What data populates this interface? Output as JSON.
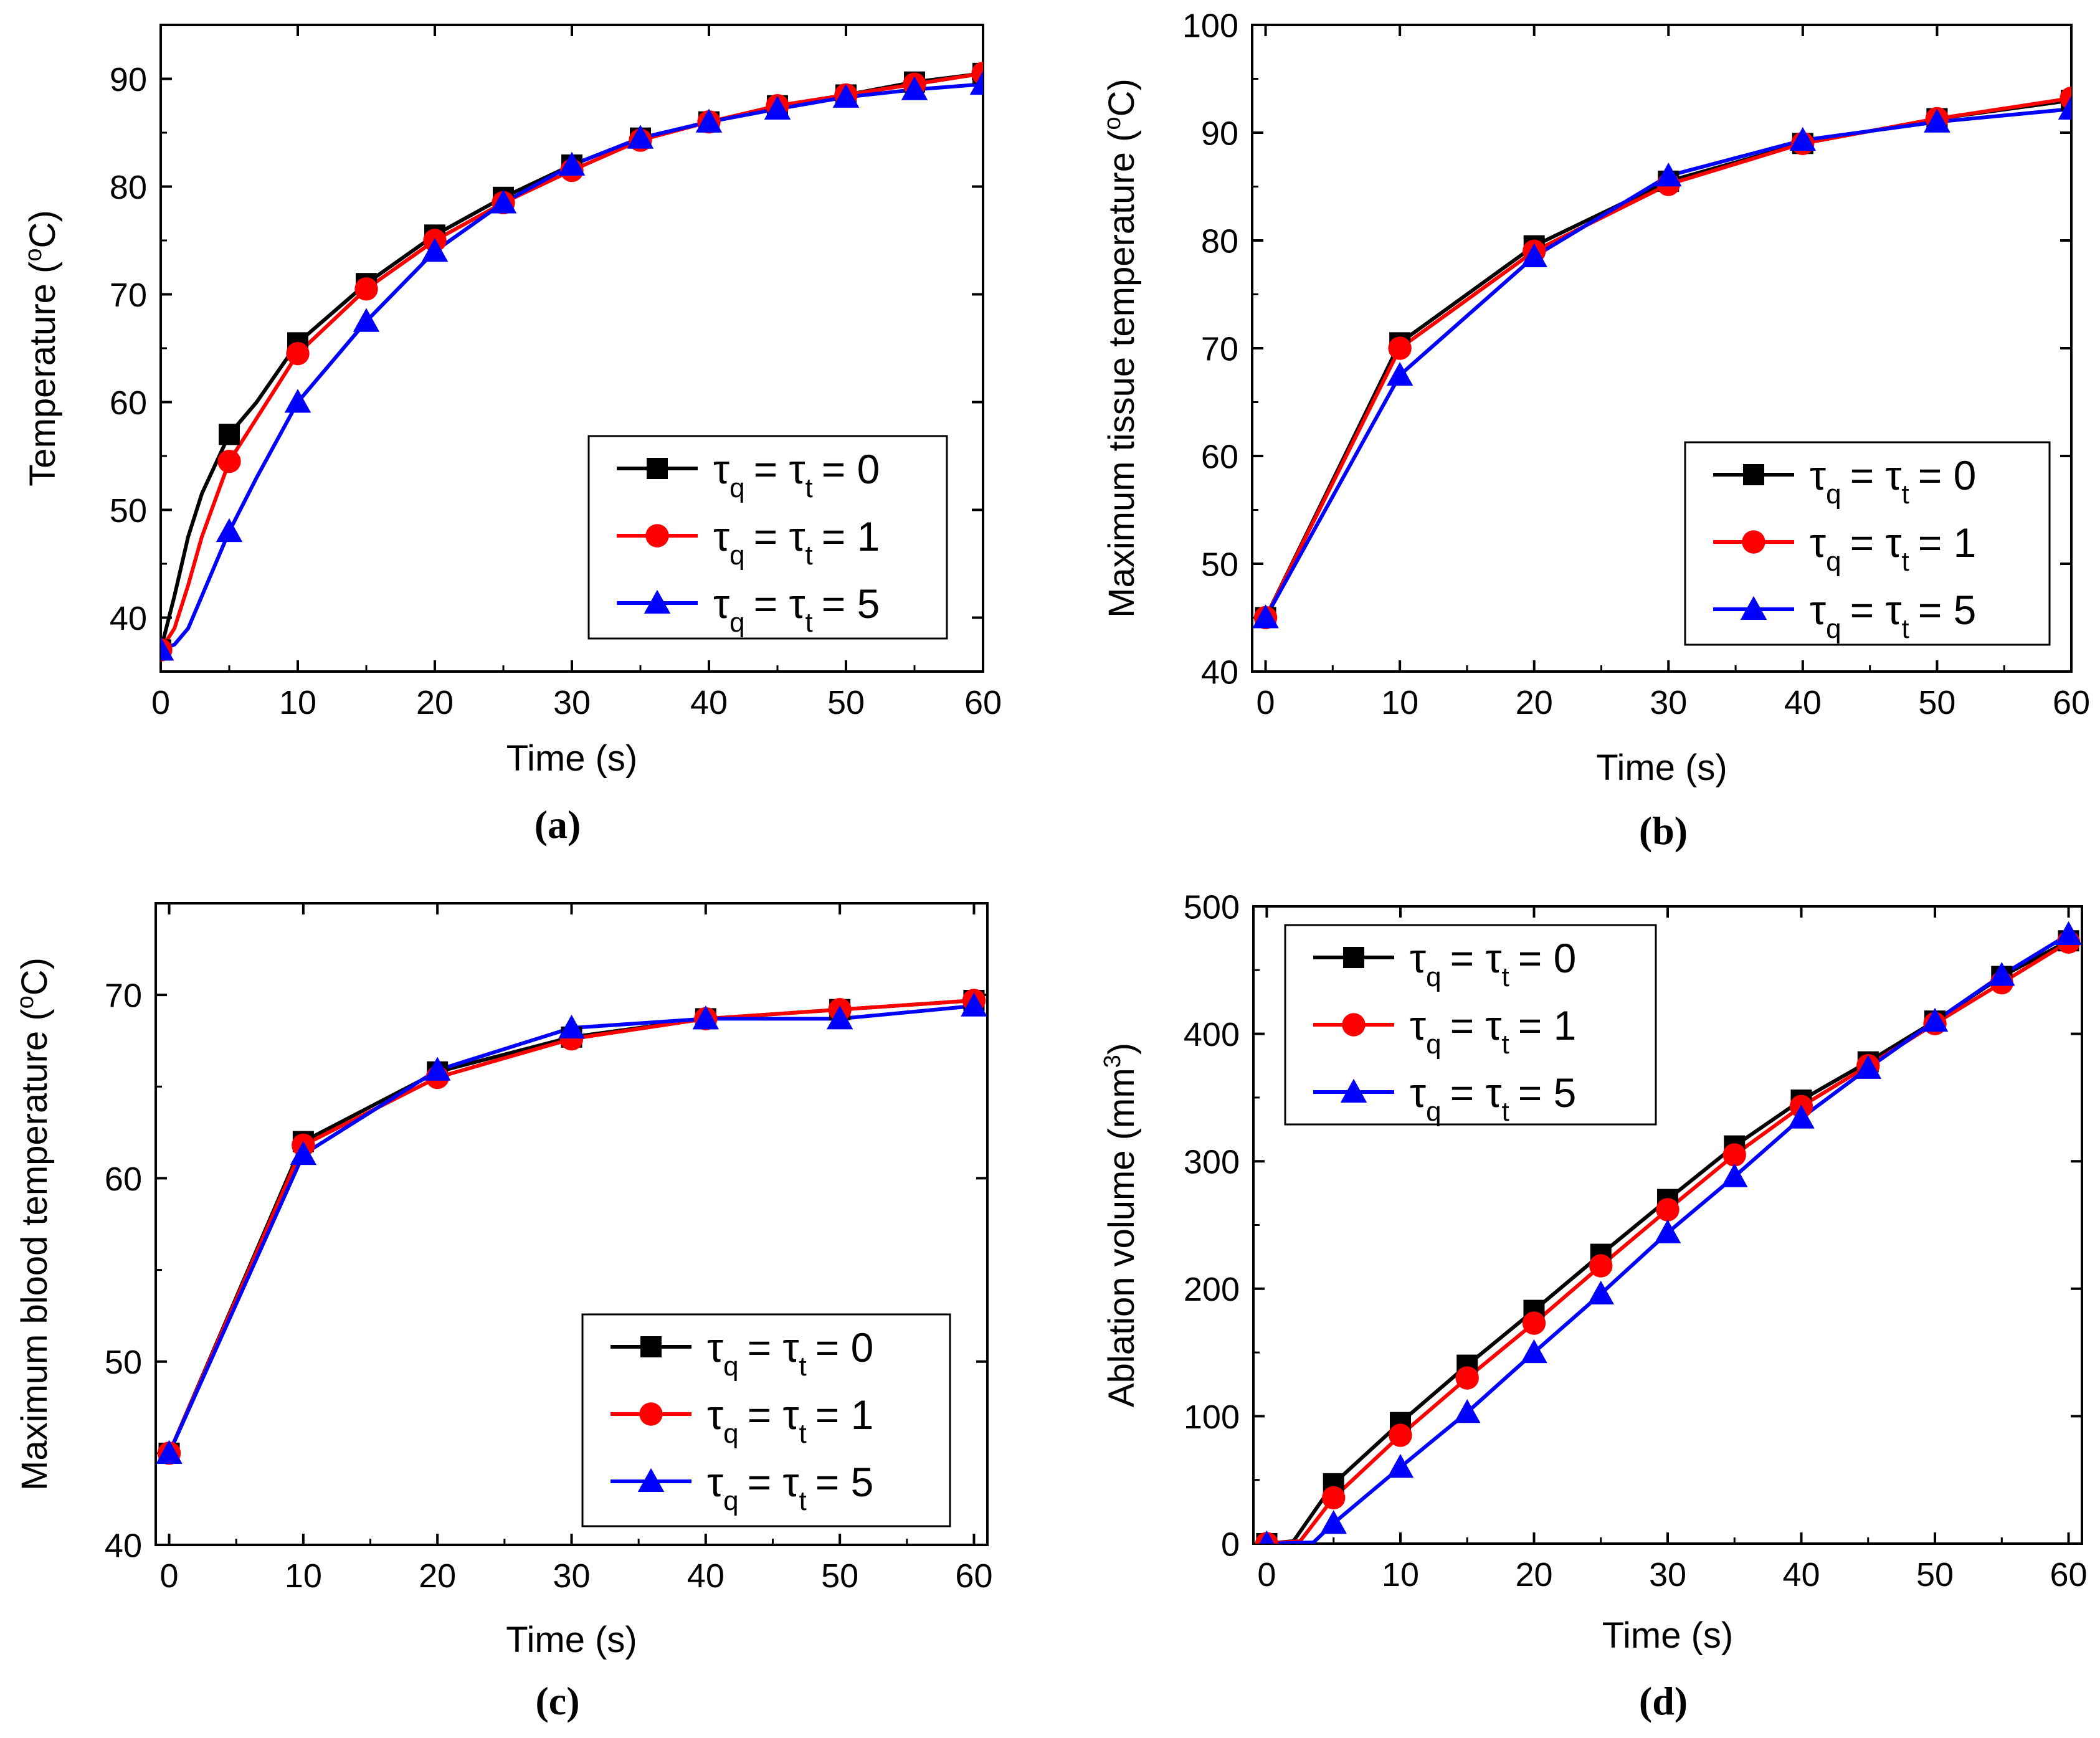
{
  "figure": {
    "panel_labels": [
      "(a)",
      "(b)",
      "(c)",
      "(d)"
    ]
  },
  "colors": {
    "series_0": "#000000",
    "series_1": "#ff0000",
    "series_2": "#0000ff"
  },
  "chart_data": [
    {
      "type": "line",
      "panel": "(a)",
      "xlabel": "Time (s)",
      "ylabel_main": "Temperature (",
      "ylabel_sup": "o",
      "ylabel_tail": "C)",
      "xlim": [
        0,
        60
      ],
      "ylim": [
        35,
        95
      ],
      "xticks": [
        0,
        10,
        20,
        30,
        40,
        50,
        60
      ],
      "yticks": [
        40,
        50,
        60,
        70,
        80,
        90
      ],
      "xtick_labels": [
        "0",
        "10",
        "20",
        "30",
        "40",
        "50",
        "60"
      ],
      "ytick_labels": [
        "40",
        "50",
        "60",
        "70",
        "80",
        "90"
      ],
      "legend_position": "lower-right",
      "series": [
        {
          "name": "τq = τt = 0",
          "tau_label": "τ",
          "sub_q": "q",
          "sub_t": "t",
          "eq": "=",
          "value_label": "= 0",
          "marker": "square",
          "x": [
            0,
            1,
            2,
            3,
            5,
            7,
            10,
            15,
            20,
            25,
            30,
            35,
            40,
            45,
            50,
            55,
            60
          ],
          "y": [
            37,
            42,
            47.5,
            51.5,
            57,
            60,
            65.5,
            71,
            75.5,
            79,
            82,
            84.5,
            86,
            87.5,
            88.5,
            89.7,
            90.5
          ],
          "mx": [
            0,
            5,
            10,
            15,
            20,
            25,
            30,
            35,
            40,
            45,
            50,
            55,
            60
          ],
          "my": [
            37,
            57,
            65.5,
            71,
            75.5,
            79,
            82,
            84.5,
            86,
            87.5,
            88.5,
            89.7,
            90.5
          ]
        },
        {
          "name": "τq = τt = 1",
          "tau_label": "τ",
          "sub_q": "q",
          "sub_t": "t",
          "eq": "=",
          "value_label": "= 1",
          "marker": "circle",
          "x": [
            0,
            1,
            2,
            3,
            5,
            7,
            10,
            15,
            20,
            25,
            30,
            35,
            40,
            45,
            50,
            55,
            60
          ],
          "y": [
            37,
            39,
            43,
            47.5,
            54.5,
            58.5,
            64.5,
            70.5,
            75,
            78.5,
            81.5,
            84.3,
            86,
            87.5,
            88.5,
            89.5,
            90.5
          ],
          "mx": [
            0,
            5,
            10,
            15,
            20,
            25,
            30,
            35,
            40,
            45,
            50,
            55,
            60
          ],
          "my": [
            37,
            54.5,
            64.5,
            70.5,
            75,
            78.5,
            81.5,
            84.3,
            86,
            87.5,
            88.5,
            89.5,
            90.5
          ]
        },
        {
          "name": "τq = τt = 5",
          "tau_label": "τ",
          "sub_q": "q",
          "sub_t": "t",
          "eq": "=",
          "value_label": "= 5",
          "marker": "triangle",
          "x": [
            0,
            1,
            2,
            3,
            5,
            7,
            10,
            15,
            20,
            25,
            30,
            35,
            40,
            45,
            50,
            55,
            60
          ],
          "y": [
            37,
            37.5,
            39,
            42,
            48,
            53,
            60,
            67.5,
            74,
            78.5,
            82,
            84.5,
            86,
            87.2,
            88.3,
            89,
            89.5
          ],
          "mx": [
            0,
            5,
            10,
            15,
            20,
            25,
            30,
            35,
            40,
            45,
            50,
            55,
            60
          ],
          "my": [
            37,
            48,
            60,
            67.5,
            74,
            78.5,
            82,
            84.5,
            86,
            87.2,
            88.3,
            89,
            89.5
          ]
        }
      ]
    },
    {
      "type": "line",
      "panel": "(b)",
      "xlabel": "Time (s)",
      "ylabel_main": "Maximum tissue temperature (",
      "ylabel_sup": "o",
      "ylabel_tail": "C)",
      "xlim": [
        -1,
        60
      ],
      "ylim": [
        40,
        100
      ],
      "xticks": [
        0,
        10,
        20,
        30,
        40,
        50,
        60
      ],
      "yticks": [
        40,
        50,
        60,
        70,
        80,
        90,
        100
      ],
      "xtick_labels": [
        "0",
        "10",
        "20",
        "30",
        "40",
        "50",
        "60"
      ],
      "ytick_labels": [
        "40",
        "50",
        "60",
        "70",
        "80",
        "90",
        "100"
      ],
      "legend_position": "lower-right",
      "series": [
        {
          "name": "τq = τt = 0",
          "tau_label": "τ",
          "sub_q": "q",
          "sub_t": "t",
          "eq": "=",
          "value_label": "= 0",
          "marker": "square",
          "x": [
            0,
            10,
            20,
            30,
            40,
            50,
            60
          ],
          "y": [
            45,
            70.5,
            79.5,
            85.5,
            89,
            91.3,
            93
          ],
          "mx": [
            0,
            10,
            20,
            30,
            40,
            50,
            60
          ],
          "my": [
            45,
            70.5,
            79.5,
            85.5,
            89,
            91.3,
            93
          ]
        },
        {
          "name": "τq = τt = 1",
          "tau_label": "τ",
          "sub_q": "q",
          "sub_t": "t",
          "eq": "=",
          "value_label": "= 1",
          "marker": "circle",
          "x": [
            0,
            10,
            20,
            30,
            40,
            50,
            60
          ],
          "y": [
            45,
            70,
            79,
            85.2,
            89,
            91.3,
            93.2
          ],
          "mx": [
            0,
            10,
            20,
            30,
            40,
            50,
            60
          ],
          "my": [
            45,
            70,
            79,
            85.2,
            89,
            91.3,
            93.2
          ]
        },
        {
          "name": "τq = τt = 5",
          "tau_label": "τ",
          "sub_q": "q",
          "sub_t": "t",
          "eq": "=",
          "value_label": "= 5",
          "marker": "triangle",
          "x": [
            0,
            10,
            20,
            30,
            40,
            50,
            60
          ],
          "y": [
            45,
            67.5,
            78.5,
            86,
            89.3,
            91,
            92.2
          ],
          "mx": [
            0,
            10,
            20,
            30,
            40,
            50,
            60
          ],
          "my": [
            45,
            67.5,
            78.5,
            86,
            89.3,
            91,
            92.2
          ]
        }
      ]
    },
    {
      "type": "line",
      "panel": "(c)",
      "xlabel": "Time (s)",
      "ylabel_main": "Maximum blood temperature (",
      "ylabel_sup": "o",
      "ylabel_tail": "C)",
      "xlim": [
        -1,
        61
      ],
      "ylim": [
        40,
        75
      ],
      "xticks": [
        0,
        10,
        20,
        30,
        40,
        50,
        60
      ],
      "yticks": [
        40,
        50,
        60,
        70
      ],
      "xtick_labels": [
        "0",
        "10",
        "20",
        "30",
        "40",
        "50",
        "60"
      ],
      "ytick_labels": [
        "40",
        "50",
        "60",
        "70"
      ],
      "legend_position": "lower-right",
      "series": [
        {
          "name": "τq = τt = 0",
          "tau_label": "τ",
          "sub_q": "q",
          "sub_t": "t",
          "eq": "=",
          "value_label": "= 0",
          "marker": "square",
          "x": [
            0,
            10,
            20,
            30,
            40,
            50,
            60
          ],
          "y": [
            45,
            62,
            65.8,
            67.7,
            68.7,
            69.2,
            69.7
          ],
          "mx": [
            0,
            10,
            20,
            30,
            40,
            50,
            60
          ],
          "my": [
            45,
            62,
            65.8,
            67.7,
            68.7,
            69.2,
            69.7
          ]
        },
        {
          "name": "τq = τt = 1",
          "tau_label": "τ",
          "sub_q": "q",
          "sub_t": "t",
          "eq": "=",
          "value_label": "= 1",
          "marker": "circle",
          "x": [
            0,
            10,
            20,
            30,
            40,
            50,
            60
          ],
          "y": [
            45,
            61.8,
            65.5,
            67.6,
            68.7,
            69.2,
            69.7
          ],
          "mx": [
            0,
            10,
            20,
            30,
            40,
            50,
            60
          ],
          "my": [
            45,
            61.8,
            65.5,
            67.6,
            68.7,
            69.2,
            69.7
          ]
        },
        {
          "name": "τq = τt = 5",
          "tau_label": "τ",
          "sub_q": "q",
          "sub_t": "t",
          "eq": "=",
          "value_label": "= 5",
          "marker": "triangle",
          "x": [
            0,
            10,
            20,
            30,
            40,
            50,
            60
          ],
          "y": [
            45,
            61.3,
            65.9,
            68.2,
            68.7,
            68.7,
            69.4
          ],
          "mx": [
            0,
            10,
            20,
            30,
            40,
            50,
            60
          ],
          "my": [
            45,
            61.3,
            65.9,
            68.2,
            68.7,
            68.7,
            69.4
          ]
        }
      ]
    },
    {
      "type": "line",
      "panel": "(d)",
      "xlabel": "Time (s)",
      "ylabel_main": "Ablation volume (mm",
      "ylabel_sup": "3",
      "ylabel_tail": ")",
      "xlim": [
        -1,
        61
      ],
      "ylim": [
        0,
        500
      ],
      "xticks": [
        0,
        10,
        20,
        30,
        40,
        50,
        60
      ],
      "yticks": [
        0,
        100,
        200,
        300,
        400,
        500
      ],
      "xtick_labels": [
        "0",
        "10",
        "20",
        "30",
        "40",
        "50",
        "60"
      ],
      "ytick_labels": [
        "0",
        "100",
        "200",
        "300",
        "400",
        "500"
      ],
      "legend_position": "upper-left",
      "series": [
        {
          "name": "τq = τt = 0",
          "tau_label": "τ",
          "sub_q": "q",
          "sub_t": "t",
          "eq": "=",
          "value_label": "= 0",
          "marker": "square",
          "x": [
            0,
            2,
            5,
            10,
            15,
            20,
            25,
            30,
            35,
            40,
            45,
            50,
            55,
            60
          ],
          "y": [
            0,
            2,
            47,
            95,
            140,
            183,
            227,
            270,
            312,
            348,
            378,
            410,
            445,
            473
          ],
          "mx": [
            0,
            5,
            10,
            15,
            20,
            25,
            30,
            35,
            40,
            45,
            50,
            55,
            60
          ],
          "my": [
            0,
            47,
            95,
            140,
            183,
            227,
            270,
            312,
            348,
            378,
            410,
            445,
            473
          ]
        },
        {
          "name": "τq = τt = 1",
          "tau_label": "τ",
          "sub_q": "q",
          "sub_t": "t",
          "eq": "=",
          "value_label": "= 1",
          "marker": "circle",
          "x": [
            0,
            2.5,
            5,
            10,
            15,
            20,
            25,
            30,
            35,
            40,
            45,
            50,
            55,
            60
          ],
          "y": [
            0,
            2,
            36,
            85,
            130,
            173,
            218,
            262,
            305,
            343,
            375,
            408,
            440,
            472
          ],
          "mx": [
            0,
            5,
            10,
            15,
            20,
            25,
            30,
            35,
            40,
            45,
            50,
            55,
            60
          ],
          "my": [
            0,
            36,
            85,
            130,
            173,
            218,
            262,
            305,
            343,
            375,
            408,
            440,
            472
          ]
        },
        {
          "name": "τq = τt = 5",
          "tau_label": "τ",
          "sub_q": "q",
          "sub_t": "t",
          "eq": "=",
          "value_label": "= 5",
          "marker": "triangle",
          "x": [
            0,
            3.5,
            5,
            10,
            15,
            20,
            25,
            30,
            35,
            40,
            45,
            50,
            55,
            60
          ],
          "y": [
            0,
            1,
            16,
            60,
            103,
            150,
            196,
            244,
            288,
            334,
            373,
            410,
            446,
            478
          ],
          "mx": [
            0,
            5,
            10,
            15,
            20,
            25,
            30,
            35,
            40,
            45,
            50,
            55,
            60
          ],
          "my": [
            0,
            16,
            60,
            103,
            150,
            196,
            244,
            288,
            334,
            373,
            410,
            446,
            478
          ]
        }
      ]
    }
  ]
}
